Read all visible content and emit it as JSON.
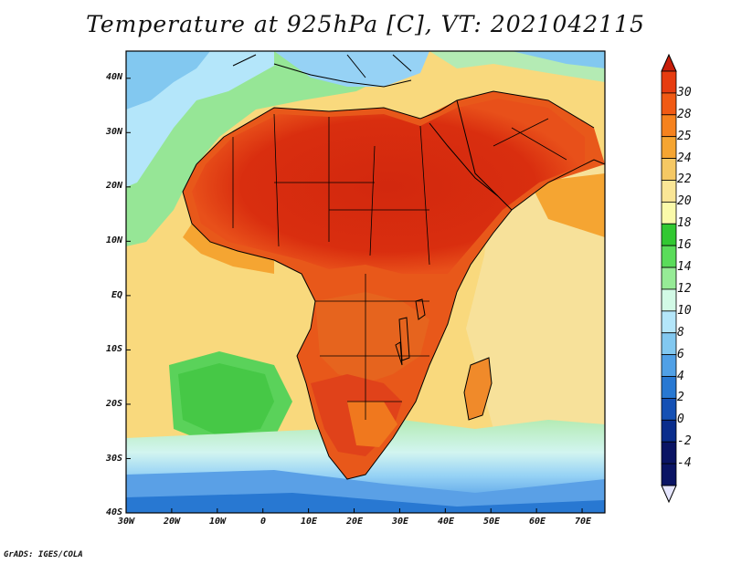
{
  "title": "Temperature at 925hPa [C], VT: 2021042115",
  "credit": "GrADS: IGES/COLA",
  "map": {
    "region": "Africa",
    "lon_range": [
      -30,
      75
    ],
    "lat_range": [
      -40,
      45
    ],
    "field": "Temperature at 925hPa",
    "units": "C",
    "valid_time": "2021042115"
  },
  "axes": {
    "lat_labels": [
      "40N",
      "30N",
      "20N",
      "10N",
      "EQ",
      "10S",
      "20S",
      "30S",
      "40S"
    ],
    "lon_labels": [
      "30W",
      "20W",
      "10W",
      "0",
      "10E",
      "20E",
      "30E",
      "40E",
      "50E",
      "60E",
      "70E"
    ]
  },
  "colorbar": {
    "labels": [
      "30",
      "28",
      "25",
      "24",
      "22",
      "20",
      "18",
      "16",
      "14",
      "12",
      "10",
      "8",
      "6",
      "4",
      "2",
      "0",
      "-2",
      "-4"
    ],
    "colors": [
      "#c81e0a",
      "#e63c10",
      "#f05a14",
      "#f5821e",
      "#f5a532",
      "#f5c864",
      "#fae696",
      "#fafaaa",
      "#32c832",
      "#5adc5a",
      "#96eb96",
      "#d2fae6",
      "#b4e6fa",
      "#82c8f0",
      "#50a0e6",
      "#2878d2",
      "#1450b4",
      "#0a2d8c",
      "#0a1464",
      "#e6e6ff"
    ]
  }
}
